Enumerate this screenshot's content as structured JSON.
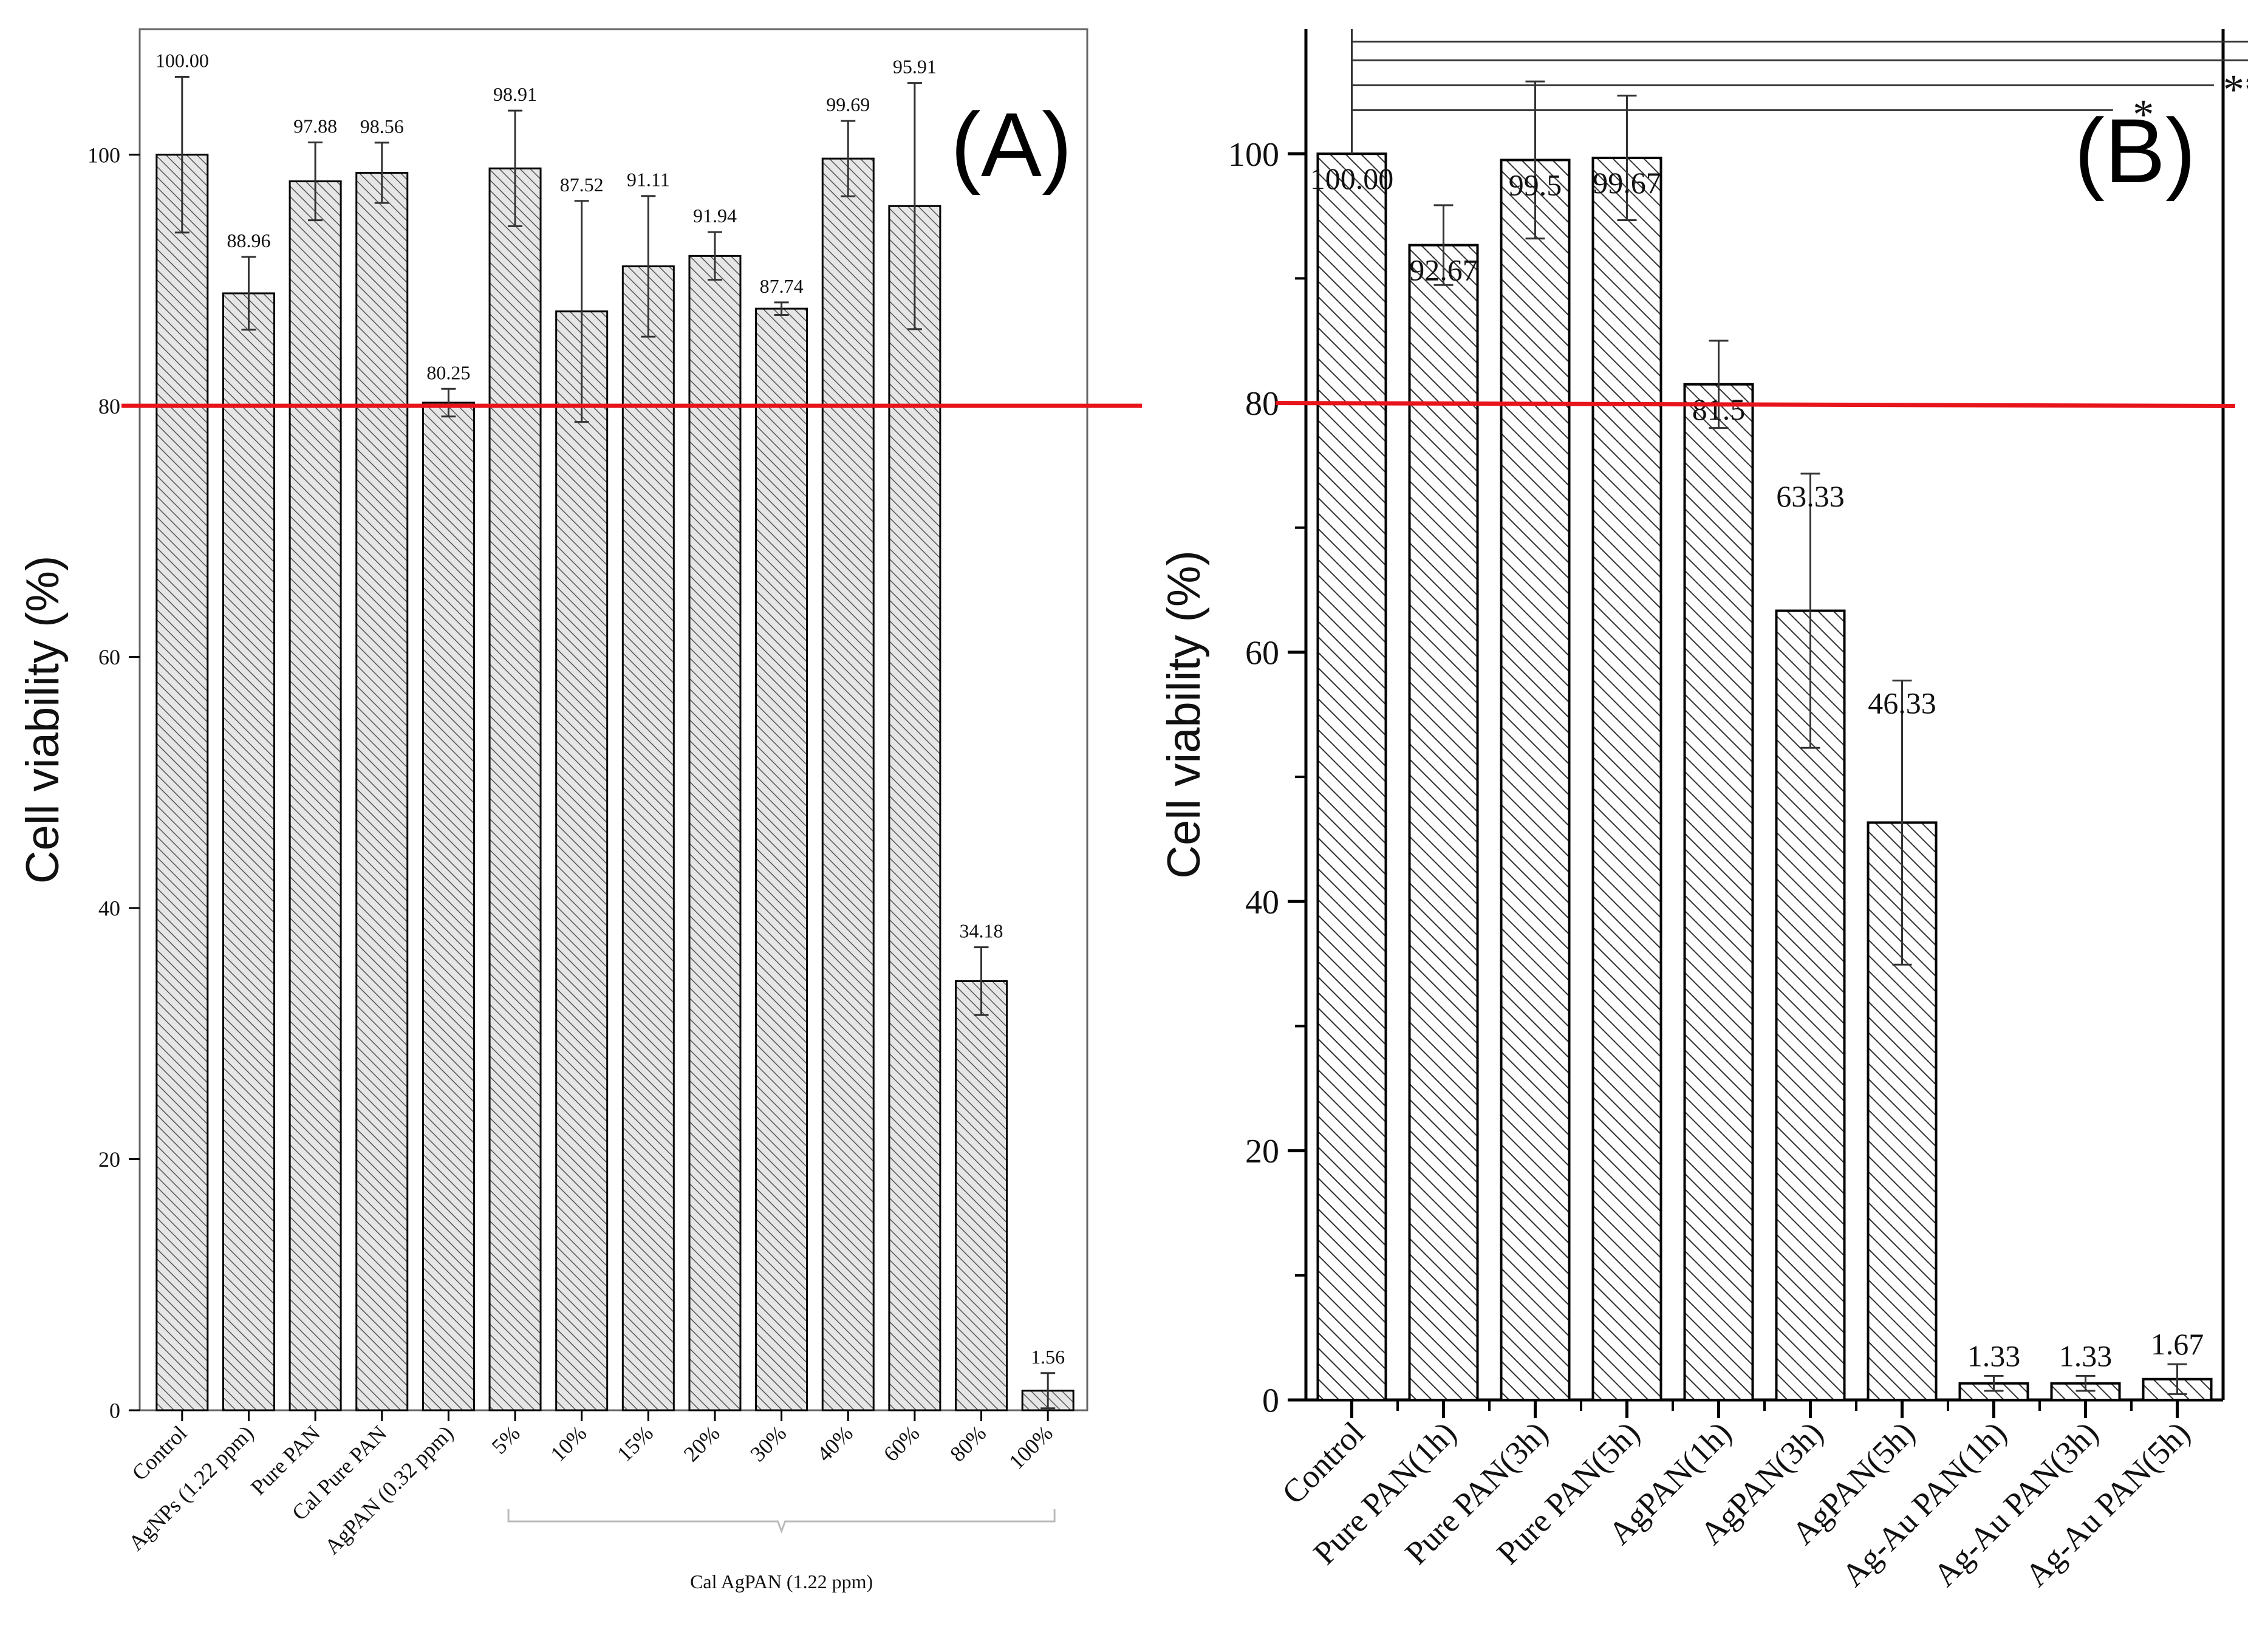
{
  "colors": {
    "background": "#ffffff",
    "axis": "#000000",
    "bar_fill_a": "#e6e6e6",
    "bar_fill_b": "#ffffff",
    "hatch": "#444444",
    "threshold_line": "#e8141b"
  },
  "chart_data": [
    {
      "type": "bar",
      "panel_label": "(A)",
      "ylabel": "Cell viability (%)",
      "ylim": [
        0,
        110
      ],
      "yticks": [
        0,
        20,
        40,
        60,
        80,
        100
      ],
      "categories": [
        "Control",
        "AgNPs (1.22 ppm)",
        "Pure PAN",
        "Cal Pure PAN",
        "AgPAN (0.32 ppm)",
        "5%",
        "10%",
        "15%",
        "20%",
        "30%",
        "40%",
        "60%",
        "80%",
        "100%"
      ],
      "values": [
        100.0,
        88.96,
        97.88,
        98.56,
        80.25,
        98.91,
        87.52,
        91.11,
        91.94,
        87.74,
        99.69,
        95.91,
        34.18,
        1.56
      ],
      "value_labels": [
        "100.00",
        "88.96",
        "97.88",
        "98.56",
        "80.25",
        "98.91",
        "87.52",
        "91.11",
        "91.94",
        "87.74",
        "99.69",
        "95.91",
        "34.18",
        "1.56"
      ],
      "errors": [
        6.2,
        2.9,
        3.1,
        2.4,
        1.1,
        4.6,
        8.8,
        5.6,
        1.9,
        0.5,
        3.0,
        9.8,
        2.7,
        1.4
      ],
      "threshold": 80,
      "group_bracket": {
        "start_index": 5,
        "end_index": 13,
        "label": "Cal AgPAN (1.22 ppm)"
      },
      "grid": false
    },
    {
      "type": "bar",
      "panel_label": "(B)",
      "ylabel": "Cell viability (%)",
      "ylim": [
        0,
        110
      ],
      "yticks": [
        0,
        20,
        40,
        60,
        80,
        100
      ],
      "categories": [
        "Control",
        "Pure PAN(1h)",
        "Pure PAN(3h)",
        "Pure PAN(5h)",
        "AgPAN(1h)",
        "AgPAN(3h)",
        "AgPAN(5h)",
        "Ag-Au PAN(1h)",
        "Ag-Au PAN(3h)",
        "Ag-Au PAN(5h)"
      ],
      "values": [
        100.0,
        92.67,
        99.5,
        99.67,
        81.5,
        63.33,
        46.33,
        1.33,
        1.33,
        1.67
      ],
      "value_labels": [
        "100.00",
        "92.67",
        "99.5",
        "99.67",
        "81.5",
        "63.33",
        "46.33",
        "1.33",
        "1.33",
        "1.67"
      ],
      "errors": [
        0,
        3.2,
        6.3,
        5.0,
        3.5,
        11.0,
        11.4,
        0.6,
        0.6,
        1.2
      ],
      "threshold": 80,
      "significance": [
        {
          "label": "*",
          "y": 103.5,
          "to_x": 8.3
        },
        {
          "label": "**",
          "y": 105.5,
          "to_x": 9.4
        },
        {
          "label": "**",
          "y": 107.5,
          "to_x": 10.5
        },
        {
          "label": "**",
          "y": 109.0,
          "to_x": 11.2
        }
      ],
      "grid": false
    }
  ]
}
